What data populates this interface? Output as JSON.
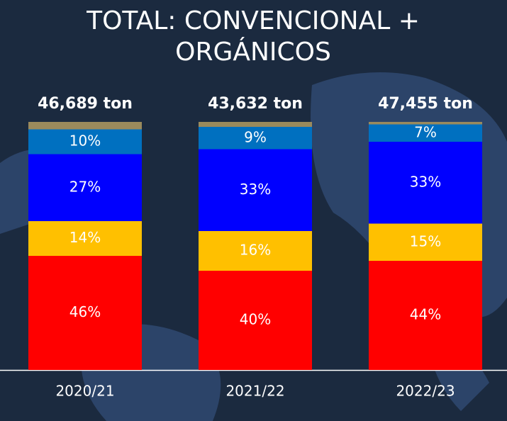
{
  "chart_data": {
    "type": "stacked_bar",
    "title": "TOTAL: CONVENCIONAL + ORGÁNICOS",
    "categories": [
      "2020/21",
      "2021/22",
      "2022/23"
    ],
    "totals": [
      "46,689 ton",
      "43,632 ton",
      "47,455 ton"
    ],
    "ylim": [
      0,
      100
    ],
    "series": [
      {
        "color": "#ff0000",
        "values": [
          46,
          40,
          44
        ],
        "value_labels": [
          "46%",
          "40%",
          "44%"
        ]
      },
      {
        "color": "#ffc000",
        "values": [
          14,
          16,
          15
        ],
        "value_labels": [
          "14%",
          "16%",
          "15%"
        ]
      },
      {
        "color": "#0000ff",
        "values": [
          27,
          33,
          33
        ],
        "value_labels": [
          "27%",
          "33%",
          "33%"
        ]
      },
      {
        "color": "#0070c0",
        "values": [
          10,
          9,
          7
        ],
        "value_labels": [
          "10%",
          "9%",
          "7%"
        ]
      },
      {
        "color": "#9a8a5c",
        "values": [
          3,
          2,
          1
        ]
      }
    ]
  }
}
